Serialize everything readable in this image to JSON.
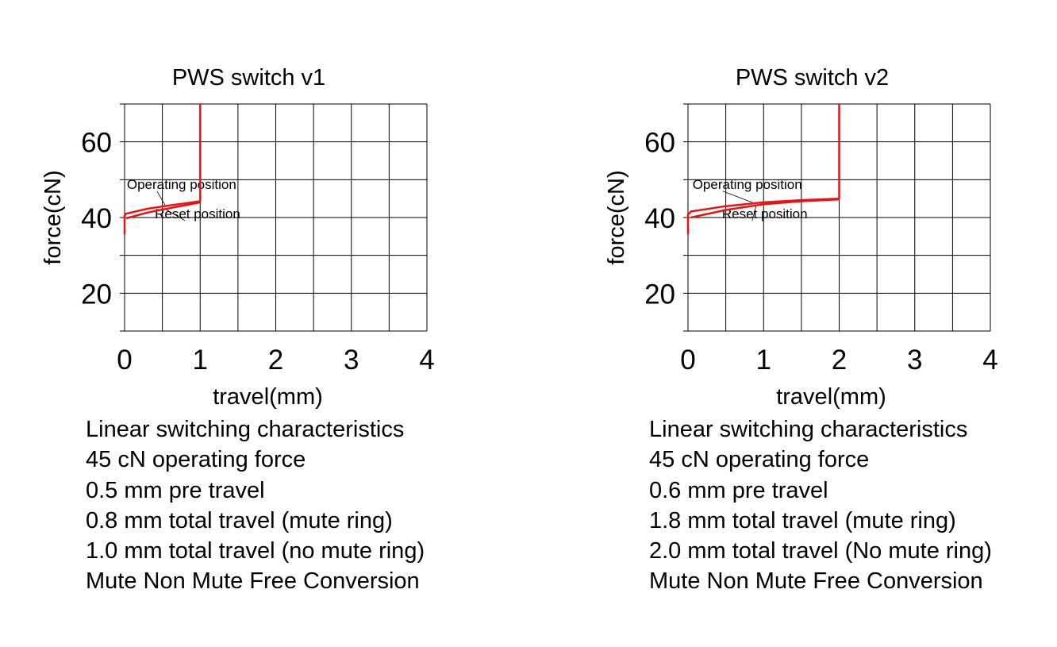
{
  "colors": {
    "curve": "#ee1111",
    "grid": "#000000",
    "text": "#000000",
    "background": "#ffffff"
  },
  "panels": [
    {
      "chart_data": {
        "type": "line",
        "title": "PWS switch v1",
        "xlabel": "travel(mm)",
        "ylabel": "force(cN)",
        "xlim": [
          0,
          4
        ],
        "ylim": [
          10,
          70
        ],
        "xticks": [
          0,
          1,
          2,
          3,
          4
        ],
        "yticks": [
          20,
          40,
          60
        ],
        "grid": true,
        "series": [
          {
            "points": [
              [
                0,
                35.5
              ],
              [
                0,
                40.5
              ],
              [
                0.02,
                41.0
              ],
              [
                0.3,
                42.3
              ],
              [
                0.6,
                43.2
              ],
              [
                0.9,
                44.0
              ],
              [
                1.0,
                44.3
              ],
              [
                1.0,
                70
              ]
            ]
          },
          {
            "points": [
              [
                0.02,
                39.8
              ],
              [
                0.3,
                41.3
              ],
              [
                0.6,
                42.5
              ],
              [
                0.9,
                43.6
              ],
              [
                1.0,
                44.0
              ]
            ]
          }
        ],
        "annotations": [
          {
            "text": "Operating position",
            "at": [
              0.03,
              47.6
            ],
            "target": [
              0.55,
              42.8
            ]
          },
          {
            "text": "Reset position",
            "at": [
              0.4,
              39.8
            ],
            "target": [
              0.55,
              42.1
            ]
          }
        ]
      },
      "specs": [
        "Linear switching characteristics",
        "45 cN operating force",
        "0.5 mm pre travel",
        "0.8 mm total travel (mute ring)",
        "1.0 mm total travel (no mute ring)",
        "Mute Non Mute Free Conversion"
      ]
    },
    {
      "chart_data": {
        "type": "line",
        "title": "PWS switch v2",
        "xlabel": "travel(mm)",
        "ylabel": "force(cN)",
        "xlim": [
          0,
          4
        ],
        "ylim": [
          10,
          70
        ],
        "xticks": [
          0,
          1,
          2,
          3,
          4
        ],
        "yticks": [
          20,
          40,
          60
        ],
        "grid": true,
        "series": [
          {
            "points": [
              [
                0,
                35.5
              ],
              [
                0,
                40.8
              ],
              [
                0.04,
                41.6
              ],
              [
                0.5,
                43.0
              ],
              [
                1.0,
                44.0
              ],
              [
                1.5,
                44.6
              ],
              [
                2.0,
                45.0
              ],
              [
                2.0,
                70
              ]
            ]
          },
          {
            "points": [
              [
                0.04,
                40.0
              ],
              [
                0.5,
                42.0
              ],
              [
                1.0,
                43.5
              ],
              [
                1.5,
                44.3
              ],
              [
                2.0,
                44.8
              ]
            ]
          }
        ],
        "annotations": [
          {
            "text": "Operating position",
            "at": [
              0.06,
              47.6
            ],
            "target": [
              0.9,
              43.6
            ]
          },
          {
            "text": "Reset position",
            "at": [
              0.45,
              39.8
            ],
            "target": [
              0.9,
              43.0
            ]
          }
        ]
      },
      "specs": [
        "Linear switching characteristics",
        "45 cN operating force",
        "0.6 mm pre travel",
        "1.8 mm total travel (mute ring)",
        "2.0 mm total travel (No mute ring)",
        "Mute Non Mute Free Conversion"
      ]
    }
  ]
}
